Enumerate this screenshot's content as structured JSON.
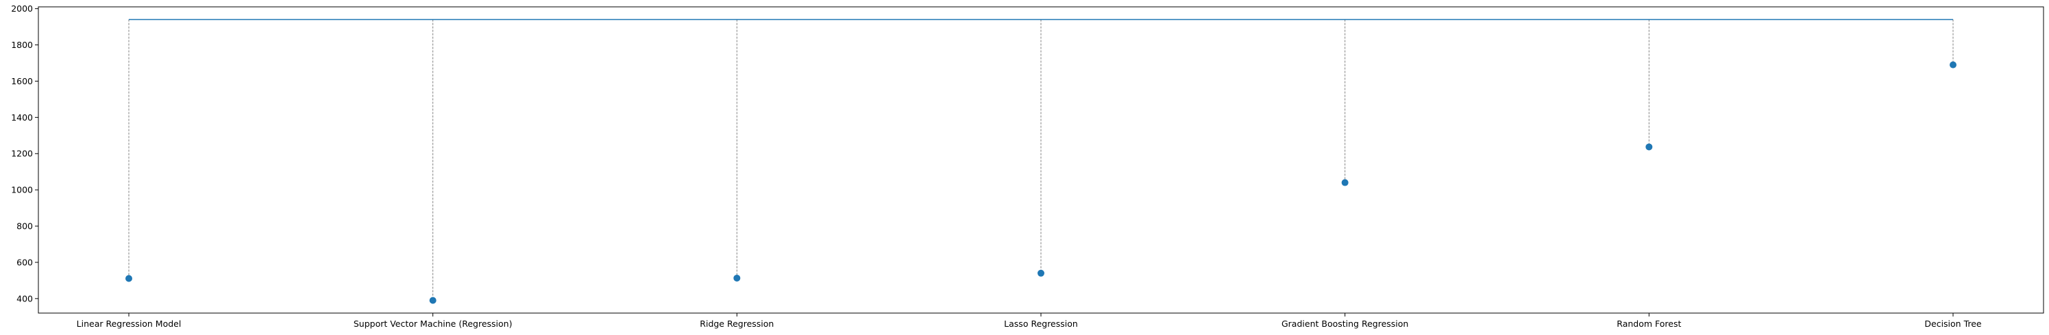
{
  "chart_data": {
    "type": "scatter",
    "categories": [
      "Linear Regression Model",
      "Support Vector Machine (Regression)",
      "Ridge Regression",
      "Lasso Regression",
      "Gradient Boosting Regression",
      "Random Forest",
      "Decision Tree"
    ],
    "values": [
      511,
      390,
      513,
      540,
      1040,
      1237,
      1690
    ],
    "reference_line": 1940,
    "title": "",
    "xlabel": "",
    "ylabel": "",
    "ylim": [
      320,
      2010
    ],
    "yticks": [
      400,
      600,
      800,
      1000,
      1200,
      1400,
      1600,
      1800,
      2000
    ],
    "ytick_labels": [
      "400",
      "600",
      "800",
      "1000",
      "1200",
      "1400",
      "1600",
      "1800",
      "2000"
    ],
    "grid": false,
    "legend": "none",
    "colors": {
      "points": "#1f77b4",
      "reference_line": "#1f77b4",
      "stems": "#7f7f7f",
      "axes": "#000000"
    }
  }
}
